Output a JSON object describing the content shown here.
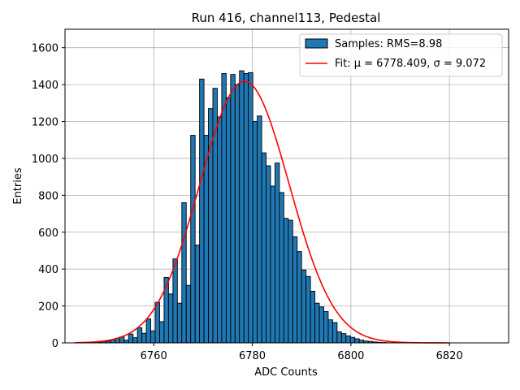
{
  "chart_data": {
    "type": "bar",
    "title": "Run 416, channel113, Pedestal",
    "xlabel": "ADC Counts",
    "ylabel": "Entries",
    "xlim": [
      6742,
      6832
    ],
    "ylim": [
      0,
      1700
    ],
    "xticks": [
      6760,
      6780,
      6800,
      6820
    ],
    "yticks": [
      0,
      200,
      400,
      600,
      800,
      1000,
      1200,
      1400,
      1600
    ],
    "grid": true,
    "legend_placement": "top-right",
    "colors": {
      "bars": "#1f77b4",
      "bar_edge": "#000000",
      "fit": "#ff0000",
      "grid": "#b0b0b0"
    },
    "histogram": {
      "name": "Samples: RMS=8.98",
      "bin_edges_start": 6745,
      "bin_width": 0.9,
      "counts": [
        0,
        0,
        0,
        2,
        5,
        8,
        10,
        18,
        25,
        32,
        15,
        48,
        28,
        82,
        52,
        130,
        65,
        220,
        115,
        355,
        265,
        455,
        215,
        760,
        312,
        1125,
        530,
        1430,
        1125,
        1270,
        1380,
        1225,
        1460,
        1330,
        1455,
        1400,
        1475,
        1460,
        1465,
        1200,
        1230,
        1030,
        960,
        850,
        975,
        815,
        675,
        665,
        575,
        495,
        395,
        360,
        280,
        215,
        195,
        170,
        125,
        110,
        60,
        50,
        38,
        30,
        22,
        15,
        10,
        8,
        5,
        3,
        2,
        1
      ]
    },
    "fit": {
      "name": "Fit: μ = 6778.409, σ = 9.072",
      "mu": 6778.409,
      "sigma": 9.072,
      "amplitude": 1418,
      "x_range": [
        6744,
        6820
      ]
    }
  }
}
